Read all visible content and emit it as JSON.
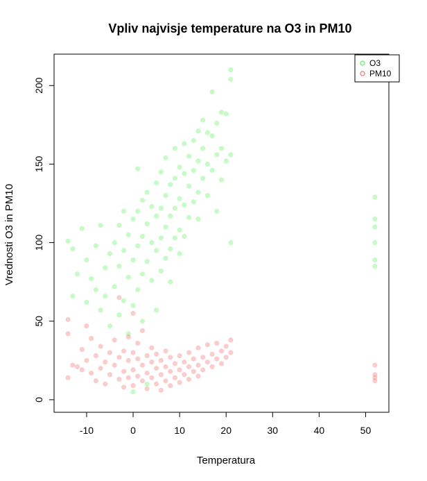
{
  "chart_data": {
    "type": "scatter",
    "title": "Vpliv najvisje temperature na O3 in PM10",
    "xlabel": "Temperatura",
    "ylabel": "Vrednosti O3 in PM10",
    "xlim": [
      -17,
      55
    ],
    "ylim": [
      -8,
      220
    ],
    "x_ticks": [
      -10,
      0,
      10,
      20,
      30,
      40,
      50
    ],
    "y_ticks": [
      0,
      50,
      100,
      150,
      200
    ],
    "grid": false,
    "legend_position": "top-right",
    "series": [
      {
        "name": "O3",
        "color": "#5cf05c",
        "points": [
          [
            -14,
            101
          ],
          [
            -13,
            96
          ],
          [
            -13,
            66
          ],
          [
            -12,
            80
          ],
          [
            -11,
            109
          ],
          [
            -10,
            89
          ],
          [
            -10,
            62
          ],
          [
            -9,
            77
          ],
          [
            -8,
            98
          ],
          [
            -8,
            70
          ],
          [
            -7,
            111
          ],
          [
            -7,
            57
          ],
          [
            -6,
            84
          ],
          [
            -6,
            66
          ],
          [
            -5,
            93
          ],
          [
            -5,
            47
          ],
          [
            -4,
            100
          ],
          [
            -4,
            72
          ],
          [
            -3,
            111
          ],
          [
            -3,
            85
          ],
          [
            -3,
            54
          ],
          [
            -2,
            120
          ],
          [
            -2,
            95
          ],
          [
            -2,
            63
          ],
          [
            -1,
            105
          ],
          [
            -1,
            78
          ],
          [
            -1,
            42
          ],
          [
            0,
            115
          ],
          [
            0,
            89
          ],
          [
            0,
            60
          ],
          [
            0,
            5
          ],
          [
            1,
            120
          ],
          [
            1,
            98
          ],
          [
            1,
            70
          ],
          [
            1,
            147
          ],
          [
            2,
            127
          ],
          [
            2,
            104
          ],
          [
            2,
            80
          ],
          [
            2,
            50
          ],
          [
            3,
            132
          ],
          [
            3,
            112
          ],
          [
            3,
            88
          ],
          [
            3,
            10
          ],
          [
            4,
            123
          ],
          [
            4,
            100
          ],
          [
            4,
            76
          ],
          [
            5,
            138
          ],
          [
            5,
            117
          ],
          [
            5,
            95
          ],
          [
            5,
            57
          ],
          [
            6,
            145
          ],
          [
            6,
            122
          ],
          [
            6,
            103
          ],
          [
            6,
            82
          ],
          [
            7,
            154
          ],
          [
            7,
            130
          ],
          [
            7,
            110
          ],
          [
            7,
            90
          ],
          [
            8,
            137
          ],
          [
            8,
            117
          ],
          [
            8,
            96
          ],
          [
            8,
            75
          ],
          [
            9,
            160
          ],
          [
            9,
            141
          ],
          [
            9,
            122
          ],
          [
            9,
            103
          ],
          [
            10,
            148
          ],
          [
            10,
            128
          ],
          [
            10,
            108
          ],
          [
            10,
            93
          ],
          [
            11,
            163
          ],
          [
            11,
            144
          ],
          [
            11,
            124
          ],
          [
            11,
            104
          ],
          [
            12,
            155
          ],
          [
            12,
            136
          ],
          [
            12,
            116
          ],
          [
            13,
            165
          ],
          [
            13,
            146
          ],
          [
            13,
            126
          ],
          [
            14,
            171
          ],
          [
            14,
            152
          ],
          [
            14,
            132
          ],
          [
            14,
            115
          ],
          [
            15,
            178
          ],
          [
            15,
            160
          ],
          [
            15,
            141
          ],
          [
            16,
            170
          ],
          [
            16,
            150
          ],
          [
            16,
            130
          ],
          [
            17,
            196
          ],
          [
            17,
            168
          ],
          [
            17,
            146
          ],
          [
            18,
            176
          ],
          [
            18,
            156
          ],
          [
            18,
            120
          ],
          [
            19,
            183
          ],
          [
            19,
            160
          ],
          [
            19,
            140
          ],
          [
            20,
            182
          ],
          [
            20,
            152
          ],
          [
            21,
            210
          ],
          [
            21,
            156
          ],
          [
            21,
            100
          ],
          [
            21,
            204
          ],
          [
            52,
            129
          ],
          [
            52,
            115
          ],
          [
            52,
            110
          ],
          [
            52,
            100
          ],
          [
            52,
            89
          ],
          [
            52,
            85
          ]
        ]
      },
      {
        "name": "PM10",
        "color": "#f07070",
        "points": [
          [
            -14,
            51
          ],
          [
            -14,
            42
          ],
          [
            -14,
            14
          ],
          [
            -13,
            22
          ],
          [
            -12,
            21
          ],
          [
            -11,
            32
          ],
          [
            -11,
            19
          ],
          [
            -10,
            47
          ],
          [
            -10,
            25
          ],
          [
            -9,
            17
          ],
          [
            -9,
            39
          ],
          [
            -8,
            28
          ],
          [
            -8,
            12
          ],
          [
            -7,
            20
          ],
          [
            -7,
            34
          ],
          [
            -6,
            24
          ],
          [
            -6,
            10
          ],
          [
            -5,
            30
          ],
          [
            -5,
            16
          ],
          [
            -4,
            38
          ],
          [
            -4,
            22
          ],
          [
            -3,
            27
          ],
          [
            -3,
            13
          ],
          [
            -3,
            65
          ],
          [
            -2,
            31
          ],
          [
            -2,
            18
          ],
          [
            -2,
            8
          ],
          [
            -1,
            25
          ],
          [
            -1,
            40
          ],
          [
            -1,
            14
          ],
          [
            0,
            30
          ],
          [
            0,
            19
          ],
          [
            0,
            9
          ],
          [
            0,
            55
          ],
          [
            1,
            26
          ],
          [
            1,
            15
          ],
          [
            1,
            36
          ],
          [
            2,
            22
          ],
          [
            2,
            12
          ],
          [
            2,
            44
          ],
          [
            3,
            28
          ],
          [
            3,
            17
          ],
          [
            3,
            7
          ],
          [
            4,
            24
          ],
          [
            4,
            33
          ],
          [
            4,
            14
          ],
          [
            5,
            20
          ],
          [
            5,
            29
          ],
          [
            5,
            10
          ],
          [
            6,
            25
          ],
          [
            6,
            16
          ],
          [
            6,
            6
          ],
          [
            7,
            21
          ],
          [
            7,
            31
          ],
          [
            7,
            12
          ],
          [
            8,
            18
          ],
          [
            8,
            27
          ],
          [
            8,
            9
          ],
          [
            9,
            23
          ],
          [
            9,
            14
          ],
          [
            10,
            19
          ],
          [
            10,
            28
          ],
          [
            10,
            11
          ],
          [
            11,
            24
          ],
          [
            11,
            16
          ],
          [
            12,
            21
          ],
          [
            12,
            30
          ],
          [
            12,
            13
          ],
          [
            13,
            26
          ],
          [
            13,
            18
          ],
          [
            14,
            22
          ],
          [
            14,
            33
          ],
          [
            14,
            15
          ],
          [
            15,
            27
          ],
          [
            15,
            19
          ],
          [
            16,
            24
          ],
          [
            16,
            35
          ],
          [
            17,
            29
          ],
          [
            17,
            21
          ],
          [
            18,
            26
          ],
          [
            18,
            36
          ],
          [
            19,
            31
          ],
          [
            19,
            23
          ],
          [
            20,
            34
          ],
          [
            20,
            27
          ],
          [
            21,
            30
          ],
          [
            21,
            38
          ],
          [
            52,
            22
          ],
          [
            52,
            16
          ],
          [
            52,
            14
          ],
          [
            52,
            12
          ]
        ]
      }
    ]
  }
}
